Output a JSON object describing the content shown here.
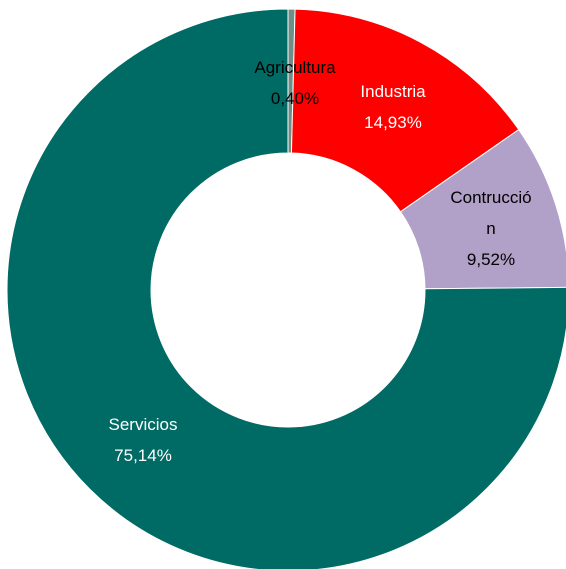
{
  "chart_data": {
    "type": "donut",
    "categories": [
      "Agricultura",
      "Industria",
      "Contrucción",
      "Servicios"
    ],
    "values": [
      0.4,
      14.93,
      9.52,
      75.14
    ],
    "value_labels": [
      "0,40%",
      "14,93%",
      "9,52%",
      "75,14%"
    ],
    "colors": [
      "#6e8f88",
      "#ff0000",
      "#b1a0c7",
      "#006a64"
    ]
  }
}
